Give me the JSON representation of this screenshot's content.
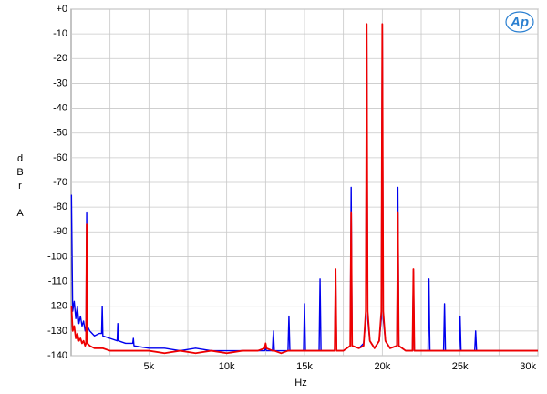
{
  "chart_data": {
    "type": "line",
    "y_label": "dBr A",
    "x_label": "Hz",
    "logo": "Ap",
    "xlim": [
      0,
      30000
    ],
    "ylim": [
      -140,
      0
    ],
    "xticks": [
      {
        "value": 5000,
        "label": "5k"
      },
      {
        "value": 10000,
        "label": "10k"
      },
      {
        "value": 15000,
        "label": "15k"
      },
      {
        "value": 20000,
        "label": "20k"
      },
      {
        "value": 25000,
        "label": "25k"
      },
      {
        "value": 30000,
        "label": "30k"
      }
    ],
    "xminor": [
      2500,
      7500,
      12500,
      17500,
      22500,
      27500
    ],
    "yticks": [
      {
        "value": 0,
        "label": "+0"
      },
      -10,
      -20,
      -30,
      -40,
      -50,
      -60,
      -70,
      -80,
      -90,
      -100,
      -110,
      -120,
      -130,
      -140
    ],
    "grid": true,
    "x": [
      20,
      100,
      200,
      300,
      400,
      500,
      600,
      700,
      800,
      900,
      960,
      1000,
      1040,
      1200,
      1500,
      1800,
      1960,
      2000,
      2040,
      2500,
      2960,
      3000,
      3040,
      3500,
      3960,
      4000,
      4040,
      5000,
      6000,
      7000,
      8000,
      9000,
      10000,
      11000,
      12000,
      12440,
      12500,
      12560,
      12940,
      13000,
      13060,
      13500,
      13940,
      14000,
      14060,
      14500,
      14940,
      15000,
      15060,
      15500,
      15940,
      16000,
      16060,
      16500,
      16940,
      17000,
      17060,
      17500,
      17940,
      18000,
      18060,
      18500,
      18800,
      18940,
      19000,
      19060,
      19200,
      19500,
      19800,
      19940,
      20000,
      20060,
      20200,
      20500,
      20940,
      21000,
      21060,
      21500,
      21940,
      22000,
      22060,
      22500,
      22940,
      23000,
      23060,
      23500,
      23940,
      24000,
      24060,
      24500,
      24940,
      25000,
      25060,
      25500,
      25940,
      26000,
      26060,
      27000,
      28000,
      29000,
      30000
    ],
    "series": [
      {
        "color": "#0000ee",
        "values": [
          -75,
          -122,
          -118,
          -125,
          -120,
          -127,
          -124,
          -128,
          -126,
          -130,
          -128,
          -82,
          -128,
          -130,
          -132,
          -131,
          -131,
          -120,
          -132,
          -133,
          -134,
          -127,
          -134,
          -135,
          -135,
          -133,
          -136,
          -137,
          -137,
          -138,
          -137,
          -138,
          -138,
          -138,
          -138,
          -138,
          -137,
          -138,
          -138,
          -130,
          -138,
          -138,
          -138,
          -124,
          -138,
          -138,
          -138,
          -119,
          -138,
          -138,
          -138,
          -109,
          -138,
          -138,
          -138,
          -106,
          -138,
          -138,
          -136,
          -72,
          -136,
          -137,
          -135,
          -125,
          -6,
          -125,
          -134,
          -137,
          -134,
          -125,
          -6,
          -125,
          -134,
          -137,
          -136,
          -72,
          -136,
          -138,
          -138,
          -106,
          -138,
          -138,
          -138,
          -109,
          -138,
          -138,
          -138,
          -119,
          -138,
          -138,
          -138,
          -124,
          -138,
          -138,
          -138,
          -130,
          -138,
          -138,
          -138,
          -138,
          -138
        ]
      },
      {
        "color": "#ee0000",
        "values": [
          -120,
          -130,
          -128,
          -133,
          -131,
          -134,
          -133,
          -135,
          -134,
          -136,
          -135,
          -87,
          -135,
          -136,
          -137,
          -137,
          -137,
          -137,
          -137,
          -138,
          -138,
          -138,
          -138,
          -138,
          -138,
          -138,
          -138,
          -138,
          -139,
          -138,
          -139,
          -138,
          -139,
          -138,
          -138,
          -137,
          -135,
          -137,
          -138,
          -138,
          -138,
          -139,
          -138,
          -138,
          -138,
          -138,
          -138,
          -138,
          -138,
          -138,
          -138,
          -138,
          -138,
          -138,
          -138,
          -105,
          -138,
          -138,
          -136,
          -82,
          -136,
          -137,
          -136,
          -122,
          -6,
          -122,
          -134,
          -137,
          -134,
          -122,
          -6,
          -122,
          -134,
          -137,
          -136,
          -82,
          -136,
          -138,
          -138,
          -105,
          -138,
          -138,
          -138,
          -138,
          -138,
          -138,
          -138,
          -138,
          -138,
          -138,
          -138,
          -138,
          -138,
          -138,
          -138,
          -138,
          -138,
          -138,
          -138,
          -138,
          -138
        ]
      }
    ]
  }
}
